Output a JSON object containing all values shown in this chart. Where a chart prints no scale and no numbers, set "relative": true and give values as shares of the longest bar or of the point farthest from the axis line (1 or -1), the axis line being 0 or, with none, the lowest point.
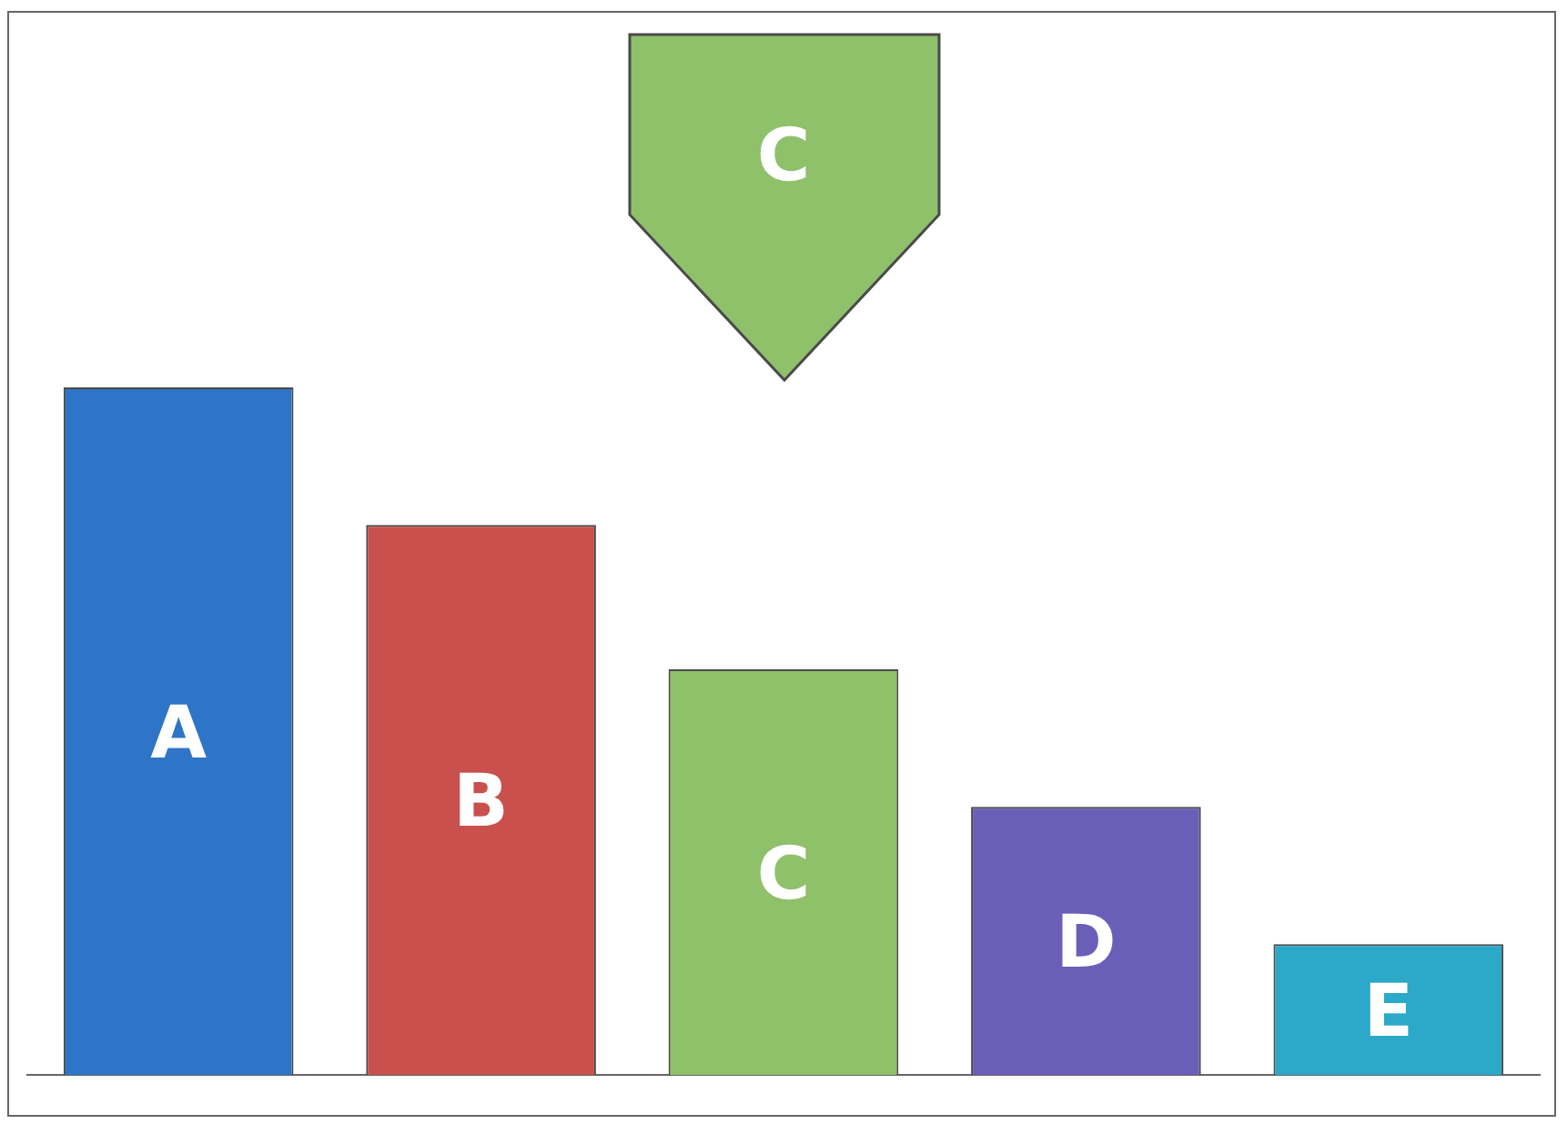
{
  "chart_data": {
    "type": "bar",
    "relative": true,
    "categories": [
      "A",
      "B",
      "C",
      "D",
      "E"
    ],
    "values": [
      1,
      0.8,
      0.59,
      0.39,
      0.19
    ],
    "colors": [
      "#2e75c8",
      "#c9504d",
      "#8fc06a",
      "#6a5fb8",
      "#2ca8c8"
    ],
    "annotations": [
      "C"
    ]
  }
}
